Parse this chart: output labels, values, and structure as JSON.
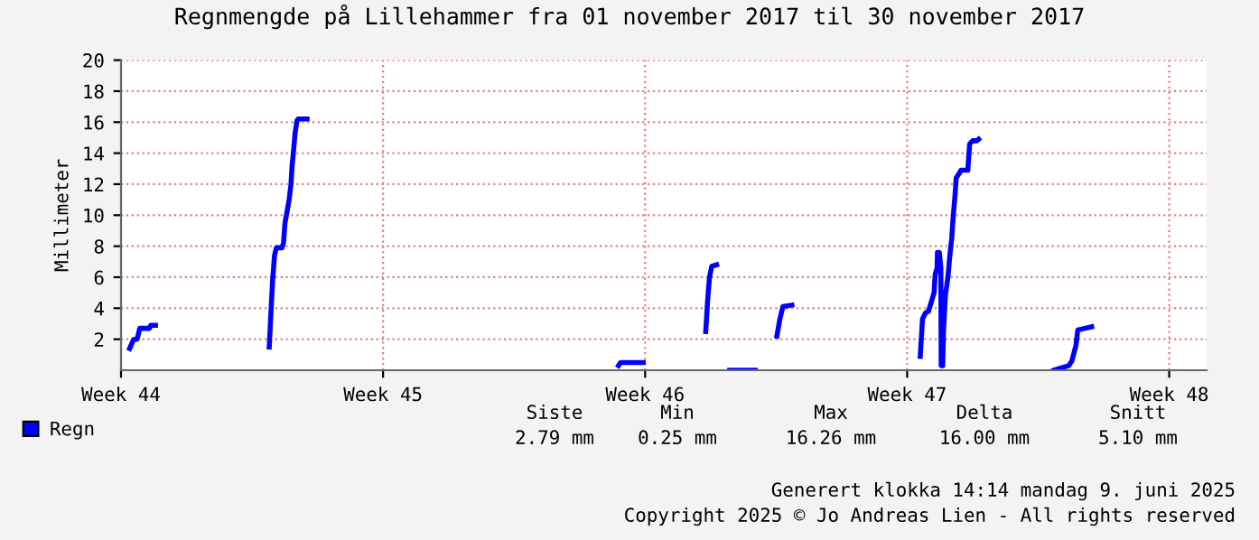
{
  "chart_data": {
    "type": "line",
    "title": "Regnmengde på Lillehammer fra 01 november 2017 til 30 november 2017",
    "ylabel": "Millimeter",
    "xlim": [
      "2017-11-01",
      "2017-11-30"
    ],
    "xticks": [
      {
        "value": "2017-11-01",
        "label": "Week 44"
      },
      {
        "value": "2017-11-08",
        "label": "Week 45"
      },
      {
        "value": "2017-11-15",
        "label": "Week 46"
      },
      {
        "value": "2017-11-22",
        "label": "Week 47"
      },
      {
        "value": "2017-11-29",
        "label": "Week 48"
      }
    ],
    "ylim": [
      0,
      20
    ],
    "yticks": [
      2,
      4,
      6,
      8,
      10,
      12,
      14,
      16,
      18,
      20
    ],
    "grid": true,
    "legend": "bottom left",
    "marker": "none",
    "line_style": "solid",
    "series": [
      {
        "name": "Regn",
        "color": "#0000ff",
        "x": [
          "2017-11-01T05:31",
          "2017-11-01T08:10",
          "2017-11-01T10:19",
          "2017-11-01T12:00",
          "2017-11-01T18:14",
          "2017-11-01T18:58",
          "2017-11-01T22:05",
          "2017-11-03T00:00",
          "2017-11-04T23:02",
          "2017-11-05T00:00",
          "2017-11-05T01:12",
          "2017-11-05T02:24",
          "2017-11-05T03:36",
          "2017-11-05T07:12",
          "2017-11-05T08:10",
          "2017-11-05T09:07",
          "2017-11-05T10:34",
          "2017-11-05T11:46",
          "2017-11-05T12:58",
          "2017-11-05T13:41",
          "2017-11-05T14:24",
          "2017-11-05T15:36",
          "2017-11-05T16:48",
          "2017-11-05T17:31",
          "2017-11-05T23:17",
          "2017-11-10T00:00",
          "2017-11-14T06:58",
          "2017-11-14T08:24",
          "2017-11-14T22:48",
          "2017-11-15T12:00",
          "2017-11-16T14:53",
          "2017-11-16T16:05",
          "2017-11-16T17:17",
          "2017-11-16T18:43",
          "2017-11-16T21:50",
          "2017-11-17T02:24",
          "2017-11-17T06:14",
          "2017-11-17T22:34",
          "2017-11-18T04:48",
          "2017-11-18T12:29",
          "2017-11-18T14:24",
          "2017-11-18T16:19",
          "2017-11-18T22:05",
          "2017-11-20T00:00",
          "2017-11-22T08:24",
          "2017-11-22T09:50",
          "2017-11-22T11:46",
          "2017-11-22T13:41",
          "2017-11-22T14:53",
          "2017-11-22T17:17",
          "2017-11-22T18:00",
          "2017-11-22T19:12",
          "2017-11-22T19:26",
          "2017-11-22T20:38",
          "2017-11-22T21:36",
          "2017-11-22T21:50",
          "2017-11-22T22:48",
          "2017-11-22T23:17",
          "2017-11-23T00:29",
          "2017-11-23T02:10",
          "2017-11-23T03:22",
          "2017-11-23T04:34",
          "2017-11-23T05:31",
          "2017-11-23T06:43",
          "2017-11-23T07:26",
          "2017-11-23T09:22",
          "2017-11-23T10:34",
          "2017-11-23T14:53",
          "2017-11-23T16:05",
          "2017-11-23T18:00",
          "2017-11-23T20:38",
          "2017-11-23T21:50",
          "2017-11-25T00:00",
          "2017-11-25T22:05",
          "2017-11-26T07:41",
          "2017-11-26T09:36",
          "2017-11-26T12:14",
          "2017-11-26T13:26",
          "2017-11-26T22:19"
        ],
        "values": [
          1.4,
          2.0,
          2.0,
          2.7,
          2.7,
          2.9,
          2.9,
          null,
          1.5,
          3.5,
          5.8,
          7.4,
          7.9,
          7.9,
          8.2,
          9.5,
          10.3,
          11.0,
          12.0,
          13.2,
          13.9,
          15.3,
          16.1,
          16.2,
          16.2,
          null,
          0.3,
          0.5,
          0.5,
          null,
          2.5,
          4.5,
          6.0,
          6.7,
          6.8,
          null,
          0,
          0,
          null,
          2.2,
          3.3,
          4.1,
          4.2,
          null,
          0.9,
          3.3,
          3.7,
          3.8,
          4.2,
          5.0,
          6.2,
          6.6,
          7.6,
          7.6,
          6.6,
          0.3,
          0.3,
          2.5,
          4.8,
          6.0,
          7.4,
          8.5,
          9.9,
          11.3,
          12.4,
          12.7,
          12.9,
          12.9,
          14.6,
          14.8,
          14.8,
          14.9,
          null,
          0,
          0.3,
          0.6,
          1.6,
          2.6,
          2.8
        ]
      }
    ],
    "annotations": [
      "Siste",
      "Min",
      "Max",
      "Delta",
      "Snitt",
      "2.79 mm",
      "0.25 mm",
      "16.26 mm",
      "16.00 mm",
      "5.10 mm",
      "Generert klokka 14:14 mandag 9. juni 2025",
      "Copyright 2025 © Jo Andreas Lien - All rights reserved"
    ]
  }
}
